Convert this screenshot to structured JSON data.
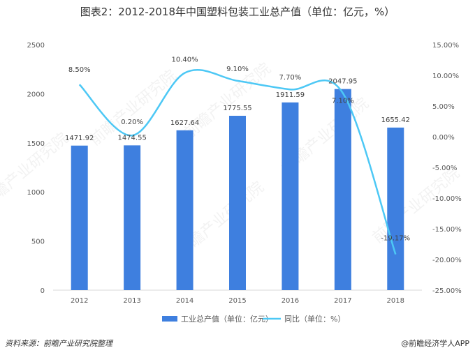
{
  "title": "图表2：2012-2018年中国塑料包装工业总产值（单位：亿元，%）",
  "source": "资料来源：前瞻产业研究院整理",
  "app_mark": "@前瞻经济学人APP",
  "watermark": "前瞻产业研究院",
  "colors": {
    "bar": "#3E7FDF",
    "line": "#4DC8F5",
    "grid": "#D9D9D9"
  },
  "chart_data": {
    "type": "bar+line",
    "categories": [
      "2012",
      "2013",
      "2014",
      "2015",
      "2016",
      "2017",
      "2018"
    ],
    "series": [
      {
        "name": "工业总产值（单位：亿元）",
        "type": "bar",
        "axis": "left",
        "values": [
          1471.92,
          1474.55,
          1627.64,
          1775.55,
          1911.59,
          2047.95,
          1655.42
        ],
        "labels": [
          "1471.92",
          "1474.55",
          "1627.64",
          "1775.55",
          "1911.59",
          "2047.95",
          "1655.42"
        ]
      },
      {
        "name": "同比（单位：%）",
        "type": "line",
        "smooth": true,
        "axis": "right",
        "values": [
          8.5,
          0.2,
          10.4,
          9.1,
          7.7,
          7.1,
          -19.17
        ],
        "labels": [
          "8.50%",
          "0.20%",
          "10.40%",
          "9.10%",
          "7.70%",
          "7.10%",
          "-19.17%"
        ]
      }
    ],
    "left_axis": {
      "min": 0,
      "max": 2500,
      "ticks": [
        "0",
        "500",
        "1000",
        "1500",
        "2000",
        "2500"
      ]
    },
    "right_axis": {
      "min": -25,
      "max": 15,
      "ticks": [
        "-25.00%",
        "-20.00%",
        "-15.00%",
        "-10.00%",
        "-5.00%",
        "0.00%",
        "5.00%",
        "10.00%",
        "15.00%"
      ]
    },
    "grid": false,
    "legend_position": "bottom"
  }
}
